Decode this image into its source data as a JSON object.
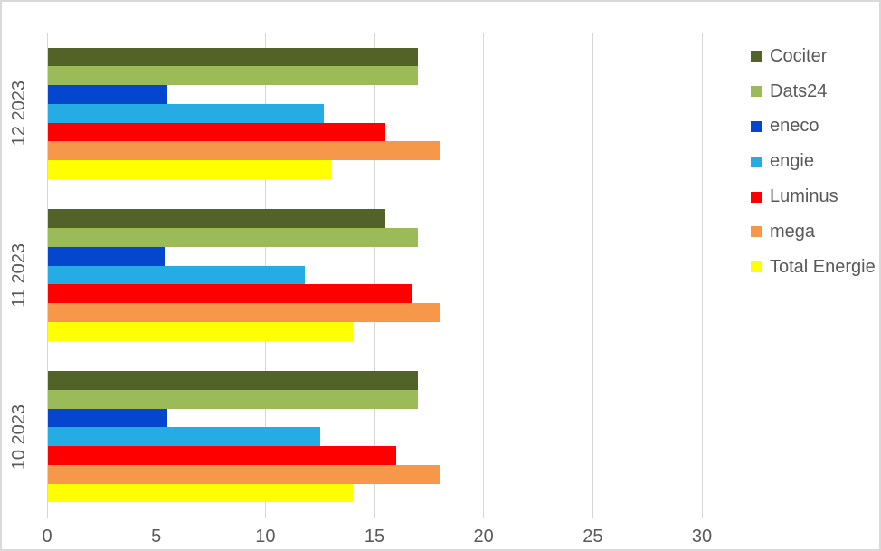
{
  "chart_data": {
    "type": "bar",
    "orientation": "horizontal",
    "title": "",
    "xlabel": "",
    "ylabel": "",
    "xlim": [
      0,
      30
    ],
    "x_ticks": [
      0,
      5,
      10,
      15,
      20,
      25,
      30
    ],
    "grid": true,
    "legend_position": "right",
    "categories": [
      "12 2023",
      "11 2023",
      "10 2023"
    ],
    "series": [
      {
        "name": "Cociter",
        "color": "#516327",
        "values": [
          17,
          15.5,
          17
        ]
      },
      {
        "name": "Dats24",
        "color": "#9bbb59",
        "values": [
          17,
          17,
          17
        ]
      },
      {
        "name": "eneco",
        "color": "#0447ce",
        "values": [
          5.5,
          5.4,
          5.5
        ]
      },
      {
        "name": "engie",
        "color": "#25ace3",
        "values": [
          12.7,
          11.8,
          12.5
        ]
      },
      {
        "name": "Luminus",
        "color": "#ff0000",
        "values": [
          15.5,
          16.7,
          16
        ]
      },
      {
        "name": "mega",
        "color": "#f7974a",
        "values": [
          18,
          18,
          18
        ]
      },
      {
        "name": "Total Energie",
        "color": "#ffff00",
        "values": [
          13,
          14,
          14
        ]
      }
    ]
  },
  "colors": {
    "frame_border": "#d9d9d9",
    "gridline": "#d6d6d6",
    "axis_text": "#595959",
    "background": "#ffffff"
  }
}
